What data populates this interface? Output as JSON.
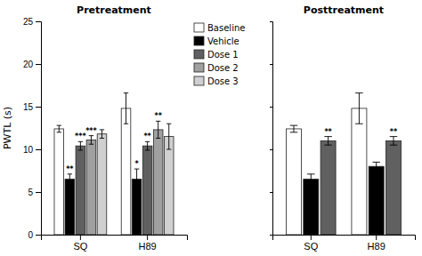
{
  "chart_data": [
    {
      "type": "bar",
      "title": "Pretreatment",
      "ylabel": "PWTL (s)",
      "categories": [
        "SQ",
        "H89"
      ],
      "series": [
        {
          "name": "Baseline",
          "color": "#ffffff",
          "values": [
            12.4,
            14.8
          ],
          "errors": [
            0.4,
            1.8
          ],
          "sig": [
            null,
            null
          ]
        },
        {
          "name": "Vehicle",
          "color": "#000000",
          "values": [
            6.5,
            6.5
          ],
          "errors": [
            0.6,
            1.2
          ],
          "sig": [
            "**",
            "*"
          ]
        },
        {
          "name": "Dose 1",
          "color": "#606060",
          "values": [
            10.4,
            10.4
          ],
          "errors": [
            0.5,
            0.5
          ],
          "sig": [
            "***",
            "**"
          ]
        },
        {
          "name": "Dose 2",
          "color": "#a0a0a0",
          "values": [
            11.1,
            12.3
          ],
          "errors": [
            0.5,
            1.0
          ],
          "sig": [
            "***",
            "**"
          ]
        },
        {
          "name": "Dose 3",
          "color": "#d0d0d0",
          "values": [
            11.8,
            11.5
          ],
          "errors": [
            0.5,
            1.5
          ],
          "sig": [
            null,
            null
          ]
        }
      ],
      "ylim": [
        0,
        25
      ],
      "yticks": [
        0,
        5,
        10,
        15,
        20,
        25
      ],
      "grid": false,
      "legend": "top"
    },
    {
      "type": "bar",
      "title": "Posttreatment",
      "categories": [
        "SQ",
        "H89"
      ],
      "series": [
        {
          "name": "Baseline",
          "color": "#ffffff",
          "values": [
            12.4,
            14.8
          ],
          "errors": [
            0.4,
            1.8
          ],
          "sig": [
            null,
            null
          ]
        },
        {
          "name": "Vehicle",
          "color": "#000000",
          "values": [
            6.5,
            8.0
          ],
          "errors": [
            0.6,
            0.5
          ],
          "sig": [
            null,
            null
          ]
        },
        {
          "name": "Dose 1",
          "color": "#606060",
          "values": [
            11.0,
            11.0
          ],
          "errors": [
            0.5,
            0.5
          ],
          "sig": [
            "**",
            "**"
          ]
        }
      ],
      "ylim": [
        0,
        25
      ],
      "yticks": [
        0,
        5,
        10,
        15,
        20,
        25
      ],
      "grid": false,
      "tick_labels": "x"
    }
  ]
}
